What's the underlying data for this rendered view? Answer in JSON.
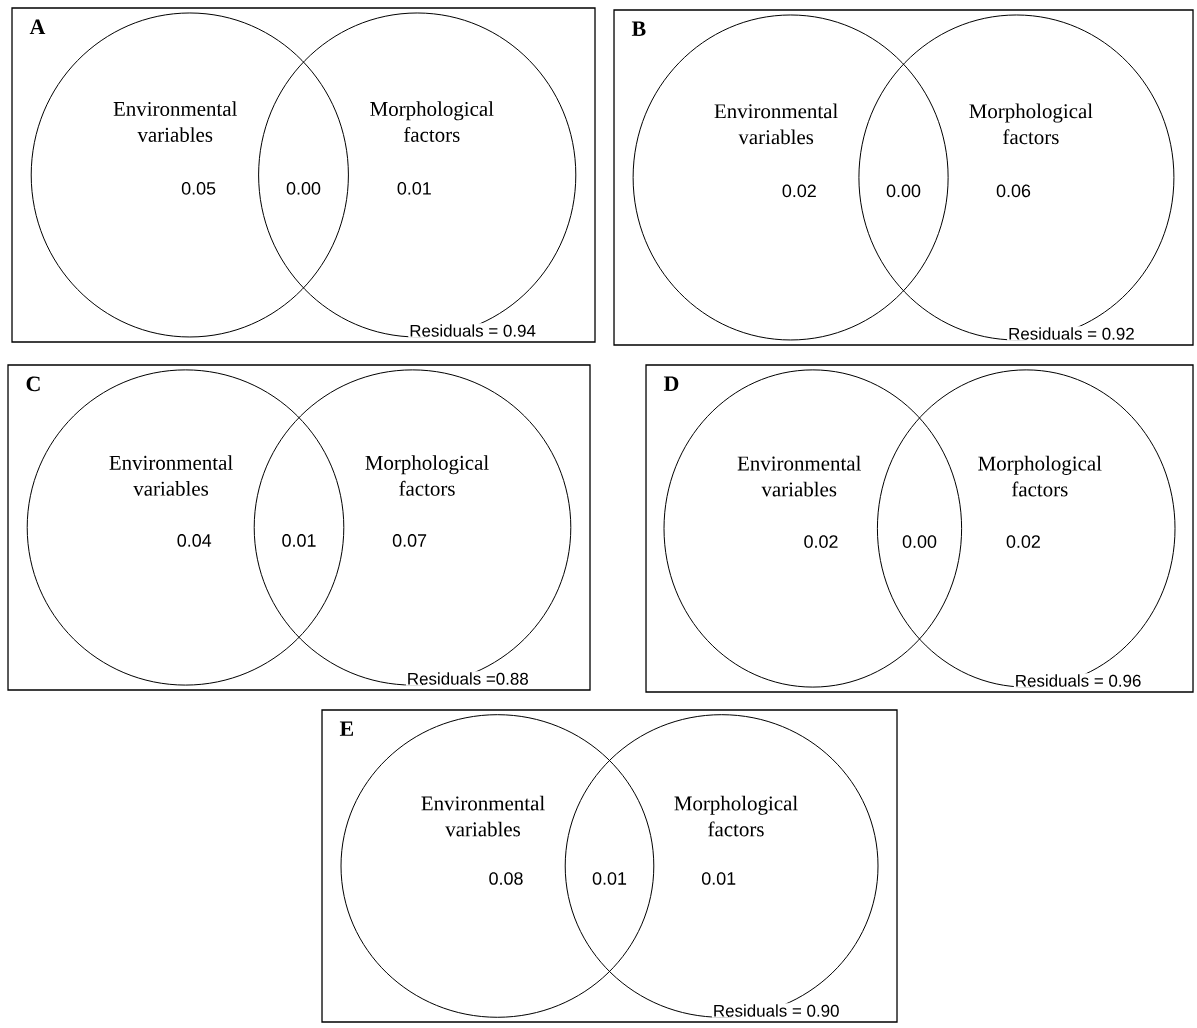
{
  "chart_data": [
    {
      "type": "other",
      "title": "A",
      "categories": [
        "Environmental variables",
        null,
        "Morphological factors"
      ],
      "values": [
        0.05,
        0.0,
        0.01
      ],
      "value_labels": [
        "0.05",
        "0.00",
        "0.01"
      ],
      "annotations": [
        "Residuals = 0.94"
      ]
    },
    {
      "type": "other",
      "title": "B",
      "categories": [
        "Environmental variables",
        null,
        "Morphological factors"
      ],
      "values": [
        0.02,
        0.0,
        0.06
      ],
      "value_labels": [
        "0.02",
        "0.00",
        "0.06"
      ],
      "annotations": [
        "Residuals = 0.92"
      ]
    },
    {
      "type": "other",
      "title": "C",
      "categories": [
        "Environmental variables",
        null,
        "Morphological factors"
      ],
      "values": [
        0.04,
        0.01,
        0.07
      ],
      "value_labels": [
        "0.04",
        "0.01",
        "0.07"
      ],
      "annotations": [
        "Residuals =0.88"
      ]
    },
    {
      "type": "other",
      "title": "D",
      "categories": [
        "Environmental variables",
        null,
        "Morphological factors"
      ],
      "values": [
        0.02,
        0.0,
        0.02
      ],
      "value_labels": [
        "0.02",
        "0.00",
        "0.02"
      ],
      "annotations": [
        "Residuals = 0.96"
      ]
    },
    {
      "type": "other",
      "title": "E",
      "categories": [
        "Environmental variables",
        null,
        "Morphological factors"
      ],
      "values": [
        0.08,
        0.01,
        0.01
      ],
      "value_labels": [
        "0.08",
        "0.01",
        "0.01"
      ],
      "annotations": [
        "Residuals = 0.90"
      ]
    }
  ]
}
